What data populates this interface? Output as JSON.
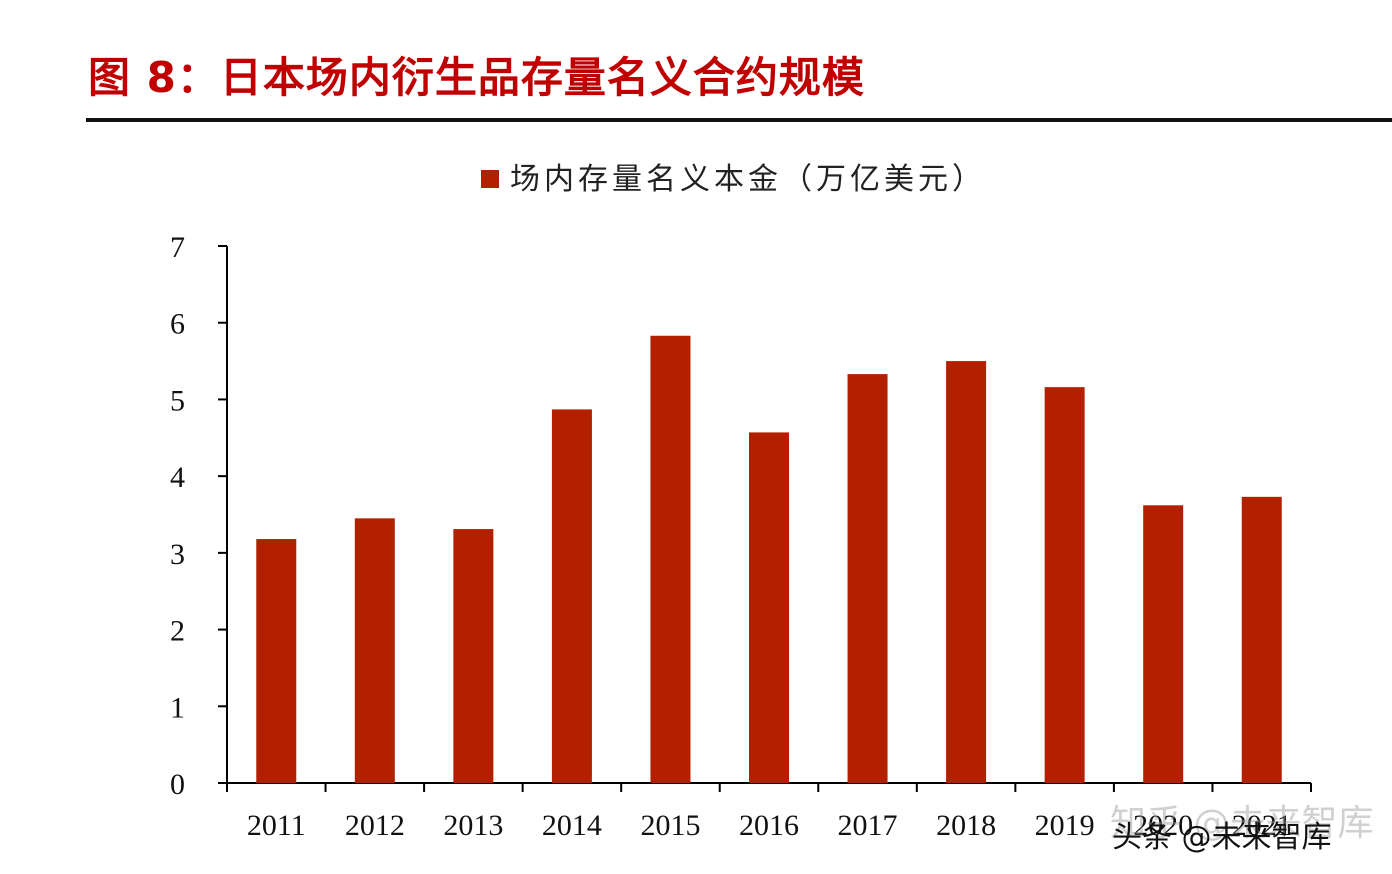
{
  "figure": {
    "title": "图 8：日本场内衍生品存量名义合约规模"
  },
  "watermarks": {
    "zhihu": "知乎 @未来智库",
    "toutiao": "头条 @未来智库"
  },
  "colors": {
    "bar": "#b22000",
    "title": "#c00000",
    "axis": "#000000"
  },
  "chart_data": {
    "type": "bar",
    "categories": [
      "2011",
      "2012",
      "2013",
      "2014",
      "2015",
      "2016",
      "2017",
      "2018",
      "2019",
      "2020",
      "2021"
    ],
    "series": [
      {
        "name": "场内存量名义本金（万亿美元）",
        "values": [
          3.18,
          3.45,
          3.31,
          4.87,
          5.83,
          4.57,
          5.33,
          5.5,
          5.16,
          3.62,
          3.73
        ]
      }
    ],
    "y_ticks": [
      "0",
      "1",
      "2",
      "3",
      "4",
      "5",
      "6",
      "7"
    ],
    "ylim": [
      0,
      7
    ],
    "legend_position": "top-center",
    "grid": false
  }
}
